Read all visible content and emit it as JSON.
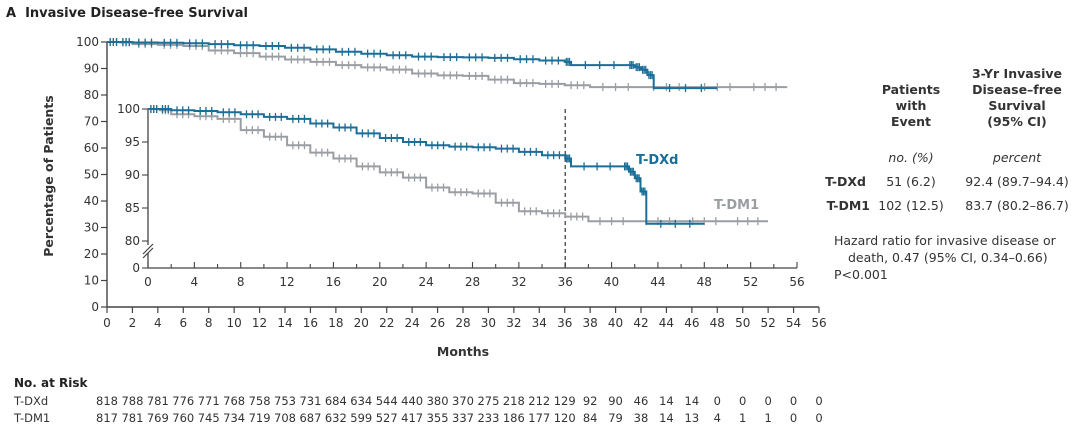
{
  "panel_letter": "A",
  "title": "Invasive Disease–free Survival",
  "table": {
    "col1_header": [
      "Patients",
      "with",
      "Event"
    ],
    "col2_header": [
      "3-Yr Invasive",
      "Disease–free",
      "Survival",
      "(95% CI)"
    ],
    "col1_unit": "no. (%)",
    "col2_unit": "percent",
    "rows": [
      {
        "name": "T-DXd",
        "events": "51 (6.2)",
        "survival": "92.4 (89.7–94.4)"
      },
      {
        "name": "T-DM1",
        "events": "102 (12.5)",
        "survival": "83.7 (80.2–86.7)"
      }
    ],
    "hazard_lines": [
      "Hazard ratio for invasive disease or",
      "death, 0.47 (95% CI, 0.34–0.66)",
      "P<0.001"
    ]
  },
  "at_risk": {
    "title": "No. at Risk",
    "rows": [
      {
        "name": "T-DXd",
        "values": [
          818,
          788,
          781,
          776,
          771,
          768,
          758,
          753,
          731,
          684,
          634,
          544,
          440,
          380,
          370,
          275,
          218,
          212,
          129,
          92,
          90,
          46,
          14,
          14,
          0,
          0,
          0,
          0,
          0
        ]
      },
      {
        "name": "T-DM1",
        "values": [
          817,
          781,
          769,
          760,
          745,
          734,
          719,
          708,
          687,
          632,
          599,
          527,
          417,
          355,
          337,
          233,
          186,
          177,
          120,
          84,
          79,
          38,
          14,
          13,
          4,
          1,
          1,
          0,
          0
        ]
      }
    ]
  },
  "colors": {
    "tdxd": "#1a6e98",
    "tdm1": "#9a9ea3",
    "axis": "#444444"
  },
  "chart_data": {
    "type": "line",
    "title": "Invasive Disease–free Survival",
    "xlabel": "Months",
    "ylabel": "Percentage of Patients",
    "xlim": [
      0,
      56
    ],
    "ylim": [
      0,
      100
    ],
    "xticks": [
      0,
      2,
      4,
      6,
      8,
      10,
      12,
      14,
      16,
      18,
      20,
      22,
      24,
      26,
      28,
      30,
      32,
      34,
      36,
      38,
      40,
      42,
      44,
      46,
      48,
      50,
      52,
      54,
      56
    ],
    "yticks": [
      0,
      10,
      20,
      30,
      40,
      50,
      60,
      70,
      80,
      90,
      100
    ],
    "inset": {
      "xlim": [
        0,
        56
      ],
      "ylim": [
        80,
        100
      ],
      "xticks": [
        0,
        4,
        8,
        12,
        16,
        20,
        24,
        28,
        32,
        36,
        40,
        44,
        48,
        52,
        56
      ],
      "yticks": [
        80,
        85,
        90,
        95,
        100
      ],
      "axis_break": true,
      "reference_line_x": 36
    },
    "legend": "inline labels",
    "series": [
      {
        "name": "T-DXd",
        "x": [
          0,
          1,
          2,
          4,
          6,
          8,
          10,
          12,
          14,
          16,
          18,
          20,
          22,
          24,
          26,
          28,
          30,
          32,
          34,
          36,
          36.5,
          41,
          41.5,
          42,
          42.5,
          43,
          48
        ],
        "y": [
          100,
          100,
          99.8,
          99.7,
          99.5,
          99.2,
          98.8,
          98.5,
          97.8,
          97.2,
          96.3,
          95.6,
          95.0,
          94.5,
          94.3,
          94.2,
          94.0,
          93.5,
          93.0,
          92.5,
          91.3,
          91.3,
          90.5,
          89.5,
          87.5,
          82.6,
          82.6
        ]
      },
      {
        "name": "T-DM1",
        "x": [
          0,
          1,
          2,
          4,
          6,
          8,
          10,
          12,
          14,
          16,
          18,
          20,
          22,
          24,
          26,
          28,
          30,
          32,
          34,
          36,
          38,
          42,
          46,
          50,
          53.5
        ],
        "y": [
          100,
          99.8,
          99.2,
          98.9,
          98.5,
          96.8,
          95.8,
          94.5,
          93.4,
          92.5,
          91.3,
          90.4,
          89.6,
          88.1,
          87.4,
          87.2,
          85.8,
          84.5,
          84.2,
          83.7,
          83.0,
          83.0,
          83.0,
          83.0,
          83.0
        ]
      }
    ],
    "labels": [
      {
        "text": "T-DXd",
        "series": "T-DXd"
      },
      {
        "text": "T-DM1",
        "series": "T-DM1"
      }
    ]
  }
}
